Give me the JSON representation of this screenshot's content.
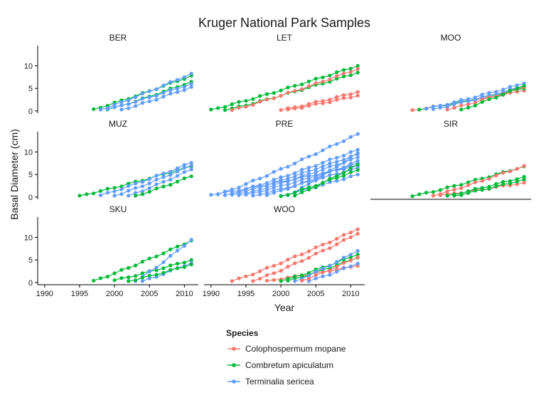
{
  "chart_data": {
    "type": "line",
    "title": "Kruger National Park Samples",
    "xlabel": "Year",
    "ylabel": "Basal Diameter (cm)",
    "xlim": [
      1989,
      2012
    ],
    "ylim": [
      -0.5,
      14.5
    ],
    "x_ticks": [
      1990,
      1995,
      2000,
      2005,
      2010
    ],
    "y_ticks": [
      0,
      5,
      10
    ],
    "legend": {
      "title": "Species",
      "placement": "bottom",
      "items": [
        {
          "key": "mopane",
          "label": "Colophospermum mopane",
          "color": "#F8766D"
        },
        {
          "key": "combretum",
          "label": "Combretum apiculatum",
          "color": "#00BA38"
        },
        {
          "key": "terminalia",
          "label": "Terminalia sericea",
          "color": "#619CFF"
        }
      ]
    },
    "panels": [
      {
        "name": "BER",
        "series": [
          {
            "species": "combretum",
            "start": 1997,
            "end": 2011,
            "y0": 0.4,
            "y1": 7.8
          },
          {
            "species": "combretum",
            "start": 1999,
            "end": 2011,
            "y0": 0.3,
            "y1": 6.5
          },
          {
            "species": "terminalia",
            "start": 1998,
            "end": 2011,
            "y0": 0.3,
            "y1": 8.3
          },
          {
            "species": "terminalia",
            "start": 1999,
            "end": 2011,
            "y0": 0.4,
            "y1": 6.0
          },
          {
            "species": "terminalia",
            "start": 2001,
            "end": 2011,
            "y0": 0.3,
            "y1": 5.3
          }
        ]
      },
      {
        "name": "LET",
        "series": [
          {
            "species": "combretum",
            "start": 1990,
            "end": 2011,
            "y0": 0.3,
            "y1": 10.0
          },
          {
            "species": "combretum",
            "start": 1992,
            "end": 2011,
            "y0": 0.2,
            "y1": 8.5
          },
          {
            "species": "mopane",
            "start": 1993,
            "end": 2011,
            "y0": 0.2,
            "y1": 9.3
          },
          {
            "species": "mopane",
            "start": 2000,
            "end": 2011,
            "y0": 0.2,
            "y1": 4.2
          },
          {
            "species": "mopane",
            "start": 2001,
            "end": 2011,
            "y0": 0.3,
            "y1": 3.4
          }
        ]
      },
      {
        "name": "MOO",
        "series": [
          {
            "species": "mopane",
            "start": 1995,
            "end": 2011,
            "y0": 0.2,
            "y1": 4.5
          },
          {
            "species": "combretum",
            "start": 1996,
            "end": 2011,
            "y0": 0.3,
            "y1": 5.0
          },
          {
            "species": "terminalia",
            "start": 1997,
            "end": 2011,
            "y0": 0.5,
            "y1": 6.1
          },
          {
            "species": "terminalia",
            "start": 1998,
            "end": 2011,
            "y0": 0.4,
            "y1": 5.5
          },
          {
            "species": "mopane",
            "start": 2000,
            "end": 2011,
            "y0": 0.3,
            "y1": 5.3
          },
          {
            "species": "combretum",
            "start": 2002,
            "end": 2011,
            "y0": 0.3,
            "y1": 5.6
          }
        ]
      },
      {
        "name": "MUZ",
        "series": [
          {
            "species": "combretum",
            "start": 1995,
            "end": 2011,
            "y0": 0.3,
            "y1": 6.8
          },
          {
            "species": "terminalia",
            "start": 1998,
            "end": 2011,
            "y0": 0.4,
            "y1": 7.6
          },
          {
            "species": "terminalia",
            "start": 2000,
            "end": 2011,
            "y0": 0.3,
            "y1": 7.0
          },
          {
            "species": "terminalia",
            "start": 2002,
            "end": 2011,
            "y0": 0.3,
            "y1": 6.1
          },
          {
            "species": "combretum",
            "start": 2003,
            "end": 2011,
            "y0": 0.3,
            "y1": 4.6
          }
        ]
      },
      {
        "name": "PRE",
        "series": [
          {
            "species": "terminalia",
            "start": 1990,
            "end": 2011,
            "y0": 0.5,
            "y1": 7.0
          },
          {
            "species": "terminalia",
            "start": 1991,
            "end": 2011,
            "y0": 0.6,
            "y1": 14.0
          },
          {
            "species": "terminalia",
            "start": 1992,
            "end": 2011,
            "y0": 0.4,
            "y1": 10.5
          },
          {
            "species": "terminalia",
            "start": 1993,
            "end": 2011,
            "y0": 0.5,
            "y1": 9.5
          },
          {
            "species": "terminalia",
            "start": 1994,
            "end": 2011,
            "y0": 0.4,
            "y1": 8.8
          },
          {
            "species": "terminalia",
            "start": 1995,
            "end": 2011,
            "y0": 0.5,
            "y1": 7.5
          },
          {
            "species": "terminalia",
            "start": 1996,
            "end": 2011,
            "y0": 0.3,
            "y1": 6.5
          },
          {
            "species": "terminalia",
            "start": 1998,
            "end": 2011,
            "y0": 0.4,
            "y1": 8.0
          },
          {
            "species": "terminalia",
            "start": 2000,
            "end": 2011,
            "y0": 0.3,
            "y1": 5.0
          },
          {
            "species": "terminalia",
            "start": 2001,
            "end": 2011,
            "y0": 0.4,
            "y1": 9.8
          },
          {
            "species": "combretum",
            "start": 2000,
            "end": 2011,
            "y0": 0.2,
            "y1": 6.0
          },
          {
            "species": "combretum",
            "start": 2002,
            "end": 2011,
            "y0": 0.3,
            "y1": 7.2
          }
        ]
      },
      {
        "name": "SIR",
        "series": [
          {
            "species": "combretum",
            "start": 1995,
            "end": 2011,
            "y0": 0.2,
            "y1": 6.8
          },
          {
            "species": "mopane",
            "start": 1998,
            "end": 2011,
            "y0": 0.3,
            "y1": 6.9
          },
          {
            "species": "mopane",
            "start": 1999,
            "end": 2011,
            "y0": 0.4,
            "y1": 3.2
          },
          {
            "species": "combretum",
            "start": 2000,
            "end": 2011,
            "y0": 0.3,
            "y1": 4.5
          },
          {
            "species": "combretum",
            "start": 2001,
            "end": 2011,
            "y0": 0.3,
            "y1": 3.9
          }
        ]
      },
      {
        "name": "SKU",
        "series": [
          {
            "species": "combretum",
            "start": 1997,
            "end": 2011,
            "y0": 0.4,
            "y1": 9.3
          },
          {
            "species": "combretum",
            "start": 2000,
            "end": 2011,
            "y0": 0.5,
            "y1": 5.0
          },
          {
            "species": "terminalia",
            "start": 2003,
            "end": 2011,
            "y0": 0.3,
            "y1": 9.5
          },
          {
            "species": "terminalia",
            "start": 2004,
            "end": 2011,
            "y0": 0.3,
            "y1": 4.4
          },
          {
            "species": "combretum",
            "start": 2002,
            "end": 2011,
            "y0": 0.3,
            "y1": 4.0
          }
        ]
      },
      {
        "name": "WOO",
        "series": [
          {
            "species": "mopane",
            "start": 1993,
            "end": 2011,
            "y0": 0.3,
            "y1": 11.8
          },
          {
            "species": "mopane",
            "start": 1996,
            "end": 2011,
            "y0": 0.3,
            "y1": 10.8
          },
          {
            "species": "mopane",
            "start": 1998,
            "end": 2011,
            "y0": 0.4,
            "y1": 3.7
          },
          {
            "species": "combretum",
            "start": 2000,
            "end": 2011,
            "y0": 0.3,
            "y1": 6.2
          },
          {
            "species": "combretum",
            "start": 2001,
            "end": 2011,
            "y0": 0.4,
            "y1": 5.5
          },
          {
            "species": "terminalia",
            "start": 2002,
            "end": 2011,
            "y0": 0.3,
            "y1": 7.0
          },
          {
            "species": "terminalia",
            "start": 2004,
            "end": 2011,
            "y0": 0.3,
            "y1": 4.2
          },
          {
            "species": "mopane",
            "start": 2003,
            "end": 2011,
            "y0": 0.4,
            "y1": 5.6
          }
        ]
      }
    ]
  }
}
